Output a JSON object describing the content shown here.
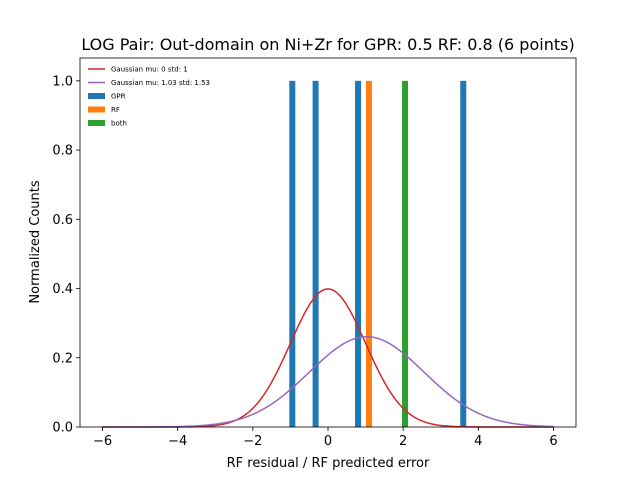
{
  "chart_data": {
    "type": "bar",
    "title": "LOG Pair: Out-domain on Ni+Zr for GPR: 0.5 RF: 0.8 (6 points)",
    "xlabel": "RF residual / RF predicted error",
    "ylabel": "Normalized Counts",
    "xlim": [
      -6.6,
      6.6
    ],
    "ylim": [
      0,
      1.066
    ],
    "xticks": [
      -6,
      -4,
      -2,
      0,
      2,
      4,
      6
    ],
    "xtick_labels": [
      "−6",
      "−4",
      "−2",
      "0",
      "2",
      "4",
      "6"
    ],
    "yticks": [
      0.0,
      0.2,
      0.4,
      0.6,
      0.8,
      1.0
    ],
    "ytick_labels": [
      "0.0",
      "0.2",
      "0.4",
      "0.6",
      "0.8",
      "1.0"
    ],
    "grid": false,
    "legend_position": "top-left",
    "series": [
      {
        "name": "Gaussian mu: 0 std: 1",
        "kind": "line",
        "mu": 0,
        "std": 1,
        "color": "#d62728",
        "x_range": [
          -6,
          6
        ]
      },
      {
        "name": "Gaussian mu: 1.03 std: 1.53",
        "kind": "line",
        "mu": 1.03,
        "std": 1.53,
        "color": "#9467bd",
        "x_range": [
          -6,
          6
        ]
      },
      {
        "name": "GPR",
        "kind": "bar",
        "color": "#1f77b4",
        "x": [
          -0.95,
          -0.33,
          0.8,
          3.6
        ],
        "values": [
          1,
          1,
          1,
          1
        ]
      },
      {
        "name": "RF",
        "kind": "bar",
        "color": "#ff7f0e",
        "x": [
          1.09
        ],
        "values": [
          1
        ]
      },
      {
        "name": "both",
        "kind": "bar",
        "color": "#2ca02c",
        "x": [
          2.05
        ],
        "values": [
          1
        ]
      }
    ]
  }
}
